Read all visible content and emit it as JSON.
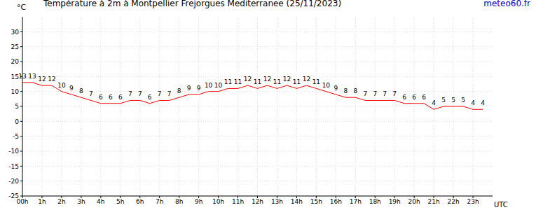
{
  "chart_data": {
    "type": "line",
    "title": "Température à 2m à Montpellier Frejorgues Mediterranee (25/11/2023)",
    "source": "meteo60.fr",
    "y_label": "°C",
    "x_label": "UTC",
    "x": [
      0,
      0.5,
      1,
      1.5,
      2,
      2.5,
      3,
      3.5,
      4,
      4.5,
      5,
      5.5,
      6,
      6.5,
      7,
      7.5,
      8,
      8.5,
      9,
      9.5,
      10,
      10.5,
      11,
      11.5,
      12,
      12.5,
      13,
      13.5,
      14,
      14.5,
      15,
      15.5,
      16,
      16.5,
      17,
      17.5,
      18,
      18.5,
      19,
      19.5,
      20,
      20.5,
      21,
      21.5,
      22,
      22.5,
      23,
      23.5
    ],
    "series": [
      {
        "name": "Température",
        "color": "#ff0000",
        "values": [
          13,
          13,
          12,
          12,
          10,
          9,
          8,
          7,
          6,
          6,
          6,
          7,
          7,
          6,
          7,
          7,
          8,
          9,
          9,
          10,
          10,
          11,
          11,
          12,
          11,
          12,
          11,
          12,
          11,
          12,
          11,
          10,
          9,
          8,
          8,
          7,
          7,
          7,
          7,
          6,
          6,
          6,
          4,
          5,
          5,
          5,
          4,
          4
        ]
      }
    ],
    "xlim": [
      0,
      24
    ],
    "xticks": [
      {
        "value": 0,
        "label": "00h"
      },
      {
        "value": 1,
        "label": "1h"
      },
      {
        "value": 2,
        "label": "2h"
      },
      {
        "value": 3,
        "label": "3h"
      },
      {
        "value": 4,
        "label": "4h"
      },
      {
        "value": 5,
        "label": "5h"
      },
      {
        "value": 6,
        "label": "6h"
      },
      {
        "value": 7,
        "label": "7h"
      },
      {
        "value": 8,
        "label": "8h"
      },
      {
        "value": 9,
        "label": "9h"
      },
      {
        "value": 10,
        "label": "10h"
      },
      {
        "value": 11,
        "label": "11h"
      },
      {
        "value": 12,
        "label": "12h"
      },
      {
        "value": 13,
        "label": "13h"
      },
      {
        "value": 14,
        "label": "14h"
      },
      {
        "value": 15,
        "label": "15h"
      },
      {
        "value": 16,
        "label": "16h"
      },
      {
        "value": 17,
        "label": "17h"
      },
      {
        "value": 18,
        "label": "18h"
      },
      {
        "value": 19,
        "label": "19h"
      },
      {
        "value": 20,
        "label": "20h"
      },
      {
        "value": 21,
        "label": "21h"
      },
      {
        "value": 22,
        "label": "22h"
      },
      {
        "value": 23,
        "label": "23h"
      }
    ],
    "ylim": [
      -25,
      35
    ],
    "yticks": [
      -25,
      -20,
      -15,
      -10,
      -5,
      0,
      5,
      10,
      15,
      20,
      25,
      30
    ],
    "grid": true,
    "data_labels": true
  }
}
